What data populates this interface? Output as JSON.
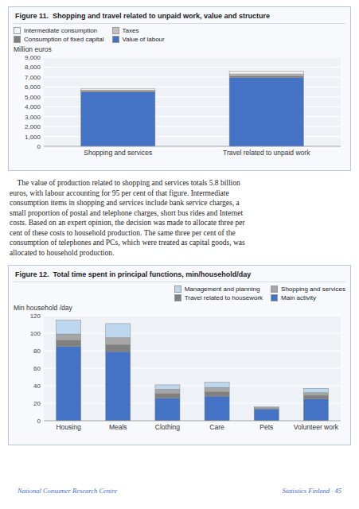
{
  "chart_data": [
    {
      "type": "bar",
      "stacked": true,
      "title": "Figure 11.  Shopping and travel related to unpaid work, value and structure",
      "ylabel": "Million euros",
      "categories": [
        "Shopping and services",
        "Travel related to unpaid work"
      ],
      "series": [
        {
          "name": "Value of labour",
          "color": "#4472C4",
          "values": [
            5500,
            6950
          ]
        },
        {
          "name": "Consumption of fixed capital",
          "color": "#7F7F7F",
          "values": [
            80,
            180
          ]
        },
        {
          "name": "Taxes",
          "color": "#C0C0C0",
          "values": [
            90,
            180
          ]
        },
        {
          "name": "Intermediate consumption",
          "color": "#F2F2F2",
          "values": [
            130,
            280
          ]
        }
      ],
      "ylim": [
        0,
        9000
      ],
      "yticks": [
        0,
        {
          "value": 1000,
          "label": "1,000"
        },
        {
          "value": 2000,
          "label": "2,000"
        },
        {
          "value": 3000,
          "label": "3,000"
        },
        {
          "value": 4000,
          "label": "4,000"
        },
        {
          "value": 5000,
          "label": "5,000"
        },
        {
          "value": 6000,
          "label": "6,000"
        },
        {
          "value": 7000,
          "label": "7,000"
        },
        {
          "value": 8000,
          "label": "8,000"
        },
        {
          "value": 9000,
          "label": "9,000"
        }
      ],
      "grid": true,
      "legend": "upper left"
    },
    {
      "type": "bar",
      "stacked": true,
      "title": "Figure 12.  Total time spent in principal functions, min/household/day",
      "ylabel": "Min household /day",
      "categories": [
        "Housing",
        "Meals",
        "Clothing",
        "Care",
        "Pets",
        "Volunteer work"
      ],
      "series": [
        {
          "name": "Main activity",
          "color": "#4472C4",
          "values": [
            85,
            79,
            26,
            28,
            13,
            25
          ]
        },
        {
          "name": "Travel related to housework",
          "color": "#808080",
          "values": [
            7,
            8,
            5,
            5,
            1,
            4
          ]
        },
        {
          "name": "Shopping and services",
          "color": "#A6A6A6",
          "values": [
            7,
            8,
            5,
            5,
            1,
            3
          ]
        },
        {
          "name": "Management and planning",
          "color": "#BDD7EE",
          "values": [
            16,
            16,
            5,
            6,
            1,
            5
          ]
        }
      ],
      "ylim": [
        0,
        120
      ],
      "yticks": [
        0,
        20,
        40,
        60,
        80,
        100,
        120
      ],
      "grid": true,
      "legend": "upper right"
    }
  ],
  "body_text": "    The value of production related to shopping and services totals 5.8 billion\neuros, with labour accounting for 95 per cent of that figure. Intermediate\nconsumption items in shopping and services include bank service charges, a\nsmall proportion of postal and telephone charges, short bus rides and Internet\ncosts. Based on an expert opinion, the decision was made to allocate three per\ncent of these costs to household production. The same three per cent of the\nconsumption of telephones and PCs, which were treated as capital goods, was\nallocated to household production.",
  "footer": [
    "National Consumer Research Centre",
    "Statistics Finland · 45"
  ]
}
